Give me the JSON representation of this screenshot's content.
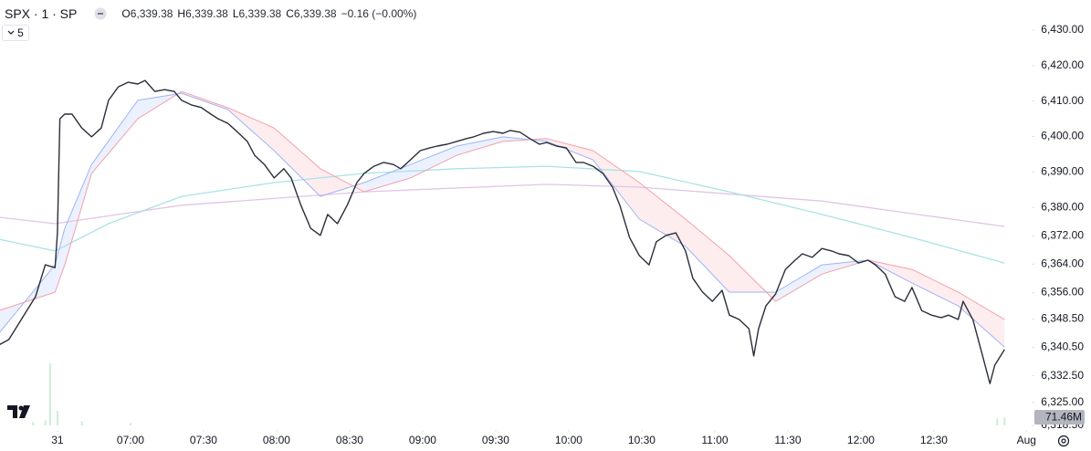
{
  "header": {
    "symbol": "SPX · 1 · SP",
    "ohlc": [
      {
        "key": "O",
        "value": "6,339.38"
      },
      {
        "key": "H",
        "value": "6,339.38"
      },
      {
        "key": "L",
        "value": "6,339.38"
      },
      {
        "key": "C",
        "value": "6,339.38"
      }
    ],
    "change": "−0.16 (−0.00%)",
    "indicator_count": "5"
  },
  "chart_data": {
    "type": "line",
    "xlim": [
      366.4,
      790.15
    ],
    "ylim": [
      6318.5,
      6430
    ],
    "xticks": [
      {
        "value": 390,
        "label": "31"
      },
      {
        "value": 420,
        "label": "07:00"
      },
      {
        "value": 450,
        "label": "07:30"
      },
      {
        "value": 480,
        "label": "08:00"
      },
      {
        "value": 510,
        "label": "08:30"
      },
      {
        "value": 540,
        "label": "09:00"
      },
      {
        "value": 570,
        "label": "09:30"
      },
      {
        "value": 600,
        "label": "10:00"
      },
      {
        "value": 630,
        "label": "10:30"
      },
      {
        "value": 660,
        "label": "11:00"
      },
      {
        "value": 690,
        "label": "11:30"
      },
      {
        "value": 720,
        "label": "12:00"
      },
      {
        "value": 750,
        "label": "12:30"
      },
      {
        "value": 788,
        "label": "Aug"
      }
    ],
    "yticks": [
      {
        "value": 6430,
        "label": "6,430.00"
      },
      {
        "value": 6420,
        "label": "6,420.00"
      },
      {
        "value": 6410,
        "label": "6,410.00"
      },
      {
        "value": 6400,
        "label": "6,400.00"
      },
      {
        "value": 6390,
        "label": "6,390.00"
      },
      {
        "value": 6380,
        "label": "6,380.00"
      },
      {
        "value": 6372,
        "label": "6,372.00"
      },
      {
        "value": 6364,
        "label": "6,364.00"
      },
      {
        "value": 6356,
        "label": "6,356.00"
      },
      {
        "value": 6348.5,
        "label": "6,348.50"
      },
      {
        "value": 6340.5,
        "label": "6,340.50"
      },
      {
        "value": 6332.5,
        "label": "6,332.50"
      },
      {
        "value": 6325,
        "label": "6,325.00"
      },
      {
        "value": 6318.5,
        "label": "6,318.50"
      }
    ],
    "grid": false,
    "series": [
      {
        "color": "#2a2e39",
        "width": 1.4,
        "x": [
          366,
          370,
          374,
          378,
          381,
          385,
          389,
          390,
          391,
          393,
          396,
          400,
          404,
          408,
          411,
          415,
          419,
          423,
          426,
          430,
          434,
          438,
          441,
          445,
          449,
          453,
          456,
          460,
          464,
          468,
          471,
          475,
          479,
          483,
          486,
          490,
          494,
          498,
          501,
          505,
          509,
          513,
          516,
          520,
          524,
          528,
          531,
          535,
          539,
          543,
          546,
          550,
          554,
          558,
          561,
          565,
          569,
          573,
          576,
          580,
          584,
          588,
          591,
          595,
          599,
          603,
          606,
          610,
          614,
          618,
          621,
          625,
          629,
          633,
          636,
          640,
          644,
          648,
          651,
          655,
          659,
          663,
          666,
          670,
          674,
          676,
          678,
          681,
          685,
          689,
          693,
          696,
          700,
          704,
          708,
          711,
          715,
          719,
          723,
          726,
          730,
          734,
          738,
          741,
          745,
          749,
          753,
          756,
          760,
          762,
          766,
          770,
          773,
          775,
          779
        ],
        "values": [
          6341.2,
          6342.7,
          6347.1,
          6351.5,
          6354.8,
          6363.8,
          6363.0,
          6372.8,
          6405.0,
          6406.3,
          6406.3,
          6402.4,
          6399.9,
          6402.4,
          6410.2,
          6414.0,
          6415.3,
          6414.8,
          6415.8,
          6412.7,
          6413.2,
          6412.7,
          6410.2,
          6408.9,
          6408.2,
          6406.3,
          6405.0,
          6403.7,
          6401.2,
          6398.6,
          6394.7,
          6392.1,
          6388.3,
          6390.9,
          6388.3,
          6380.6,
          6374.1,
          6372.1,
          6378.0,
          6375.4,
          6380.6,
          6387.0,
          6389.6,
          6391.6,
          6392.7,
          6392.1,
          6390.9,
          6393.4,
          6396.0,
          6396.8,
          6397.3,
          6397.8,
          6398.6,
          6399.4,
          6399.9,
          6400.9,
          6401.4,
          6400.9,
          6401.7,
          6401.2,
          6399.4,
          6397.8,
          6398.3,
          6397.3,
          6396.8,
          6392.7,
          6392.7,
          6391.6,
          6389.6,
          6385.7,
          6380.6,
          6371.5,
          6366.4,
          6363.8,
          6370.3,
          6372.1,
          6372.8,
          6367.7,
          6360.0,
          6356.1,
          6353.5,
          6356.6,
          6349.6,
          6348.4,
          6345.8,
          6338.1,
          6345.8,
          6352.2,
          6355.6,
          6362.5,
          6365.1,
          6366.9,
          6365.9,
          6368.4,
          6367.7,
          6366.9,
          6366.4,
          6364.3,
          6365.1,
          6363.8,
          6361.2,
          6354.8,
          6353.5,
          6357.4,
          6350.9,
          6349.6,
          6348.9,
          6349.6,
          6348.4,
          6353.5,
          6348.4,
          6338.1,
          6330.3,
          6335.5,
          6339.9
        ]
      },
      {
        "color": "#9fb4f5",
        "width": 1,
        "x": [
          366,
          389,
          393,
          404,
          423,
          441,
          460,
          479,
          498,
          516,
          535,
          554,
          573,
          591,
          610,
          629,
          648,
          666,
          685,
          704,
          723,
          741,
          760,
          779
        ],
        "values": [
          6344.5,
          6363.8,
          6374.1,
          6392.1,
          6410.2,
          6412.2,
          6407.6,
          6396.0,
          6383.1,
          6387.0,
          6392.1,
          6397.3,
          6399.9,
          6398.6,
          6393.4,
          6376.7,
          6369.0,
          6356.1,
          6356.1,
          6363.8,
          6365.1,
          6358.7,
          6352.2,
          6340.6
        ]
      },
      {
        "color": "#f5a0a8",
        "width": 1,
        "x": [
          366,
          389,
          393,
          404,
          423,
          441,
          460,
          479,
          498,
          516,
          535,
          554,
          573,
          591,
          610,
          629,
          648,
          666,
          685,
          704,
          723,
          741,
          760,
          779
        ],
        "values": [
          6350.9,
          6356.1,
          6363.8,
          6389.6,
          6405.0,
          6412.7,
          6408.1,
          6402.4,
          6390.9,
          6384.4,
          6388.3,
          6394.7,
          6398.6,
          6399.4,
          6396.0,
          6387.0,
          6376.7,
          6366.4,
          6353.5,
          6361.2,
          6365.1,
          6362.5,
          6356.1,
          6348.4
        ]
      },
      {
        "color": "#a9e2e6",
        "width": 1.3,
        "x": [
          366,
          389,
          411,
          441,
          479,
          516,
          554,
          591,
          629,
          666,
          704,
          741,
          779
        ],
        "values": [
          6371.0,
          6367.7,
          6375.4,
          6383.1,
          6387.0,
          6389.6,
          6390.9,
          6391.6,
          6390.1,
          6384.4,
          6378.0,
          6371.5,
          6364.3
        ]
      },
      {
        "color": "#e2c4e6",
        "width": 1.3,
        "x": [
          366,
          389,
          441,
          516,
          591,
          629,
          704,
          779
        ],
        "values": [
          6377.2,
          6375.4,
          6380.6,
          6384.4,
          6386.5,
          6385.7,
          6381.8,
          6374.6
        ]
      }
    ],
    "cloud_colors": [
      "rgba(41,98,255,0.09)",
      "rgba(242,54,69,0.09)"
    ],
    "volume": {
      "color": "#cdeed6",
      "x": [
        380,
        385,
        387,
        390,
        400,
        420,
        776,
        779
      ],
      "values": [
        30,
        45,
        540,
        127,
        35,
        20,
        60,
        71.46
      ],
      "value_labels": [
        null,
        null,
        null,
        null,
        null,
        null,
        null,
        "71.46M"
      ]
    }
  }
}
